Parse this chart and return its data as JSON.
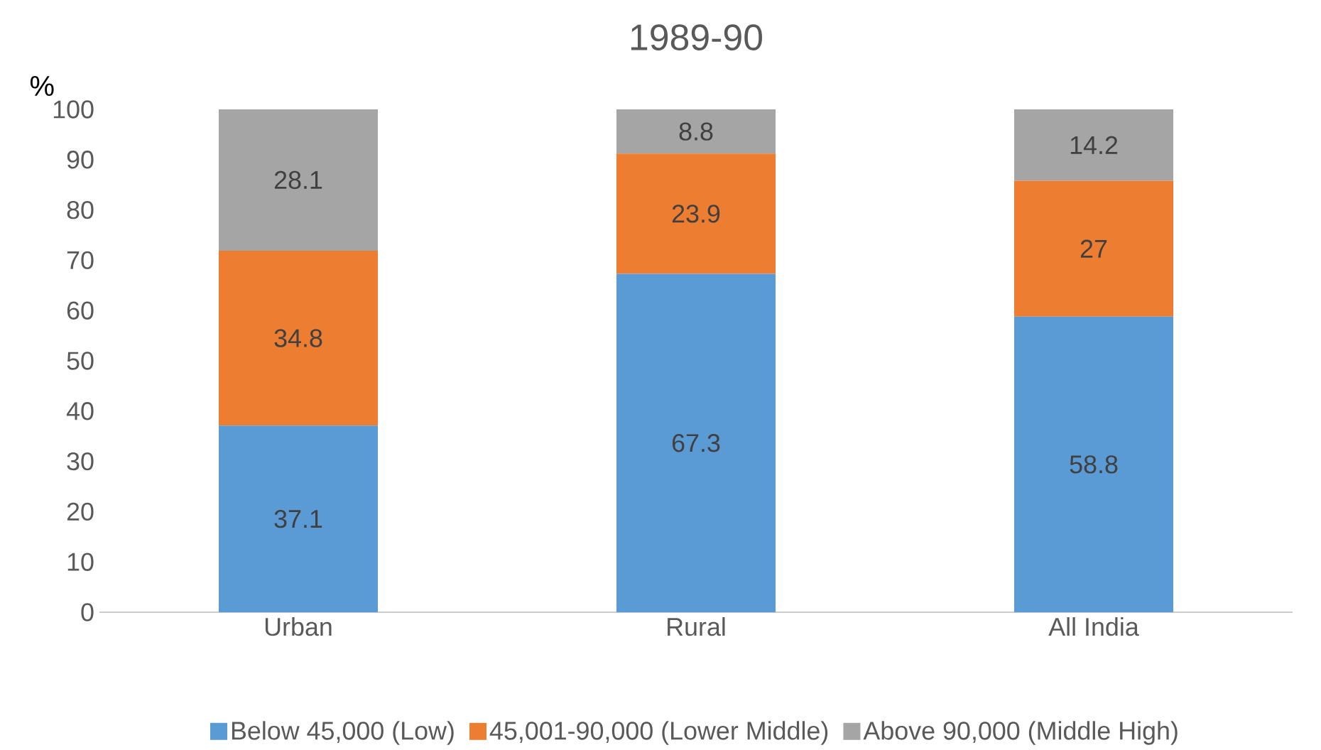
{
  "chart_data": {
    "type": "bar",
    "stacked": true,
    "title": "1989-90",
    "ylabel": "%",
    "categories": [
      "Urban",
      "Rural",
      "All India"
    ],
    "series": [
      {
        "name": "Below 45,000 (Low)",
        "color": "#5b9bd5",
        "values": [
          37.1,
          67.3,
          58.8
        ]
      },
      {
        "name": "45,001-90,000 (Lower Middle)",
        "color": "#ed7d31",
        "values": [
          34.8,
          23.9,
          27
        ]
      },
      {
        "name": "Above 90,000 (Middle High)",
        "color": "#a5a5a5",
        "values": [
          28.1,
          8.8,
          14.2
        ]
      }
    ],
    "ylim": [
      0,
      100
    ],
    "yticks": [
      0,
      10,
      20,
      30,
      40,
      50,
      60,
      70,
      80,
      90,
      100
    ],
    "data_labels": true,
    "legend": "bottom"
  }
}
